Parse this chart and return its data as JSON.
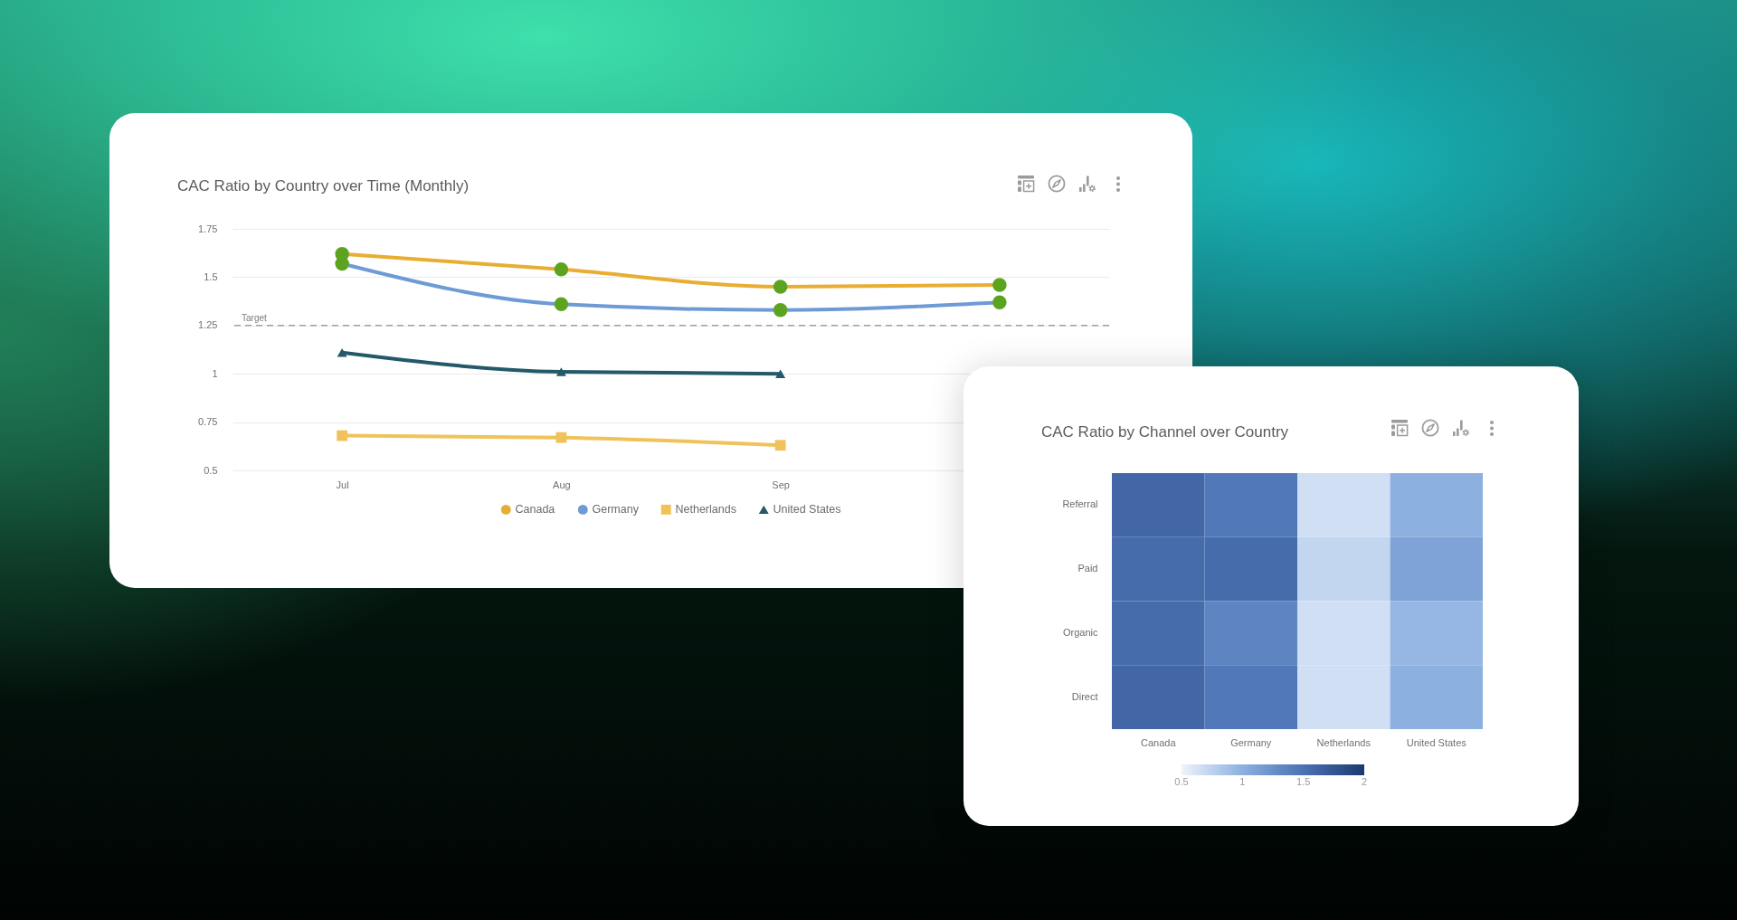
{
  "chart_data": [
    {
      "type": "line",
      "title": "CAC Ratio by Country over Time (Monthly)",
      "categories": [
        "Jul",
        "Aug",
        "Sep",
        null
      ],
      "series": [
        {
          "name": "Canada",
          "color": "#e8ad33",
          "marker": "circle",
          "colors": [
            "#5ca41f",
            "#5ca41f",
            "#5ca41f",
            "#5ca41f"
          ],
          "values": [
            1.62,
            1.54,
            1.45,
            1.46
          ]
        },
        {
          "name": "Germany",
          "color": "#6f9bd5",
          "marker": "circle",
          "colors": [
            "#5ca41f",
            "#5ca41f",
            "#5ca41f",
            "#5ca41f"
          ],
          "values": [
            1.57,
            1.36,
            1.33,
            1.37
          ]
        },
        {
          "name": "Netherlands",
          "color": "#f0c35a",
          "marker": "square",
          "values": [
            0.68,
            0.67,
            0.63,
            null
          ]
        },
        {
          "name": "United States",
          "color": "#24596a",
          "marker": "triangle",
          "values": [
            1.11,
            1.01,
            1.0,
            null
          ]
        }
      ],
      "ylim": [
        0.5,
        1.75
      ],
      "yticks": [
        0.5,
        0.75,
        1,
        1.25,
        1.5,
        1.75
      ],
      "grid": "y",
      "legend": "bottom",
      "line_style": "solid",
      "ref_lines": [
        {
          "axis": "y",
          "value": 1.25,
          "label": "Target",
          "color": "#a3a3a3",
          "line_style": "dashed"
        }
      ]
    },
    {
      "type": "heatmap",
      "title": "CAC Ratio by Channel over Country",
      "categories": [
        "Canada",
        "Germany",
        "Netherlands",
        "United States"
      ],
      "y_categories": [
        "Referral",
        "Paid",
        "Organic",
        "Direct"
      ],
      "cells": [
        [
          1.6,
          1.45,
          0.65,
          1.0
        ],
        [
          1.55,
          1.55,
          0.72,
          1.1
        ],
        [
          1.55,
          1.35,
          0.65,
          0.95
        ],
        [
          1.6,
          1.45,
          0.65,
          1.0
        ]
      ],
      "clim": [
        0.5,
        2
      ],
      "cticks": [
        0.5,
        1,
        1.5,
        2
      ]
    }
  ]
}
